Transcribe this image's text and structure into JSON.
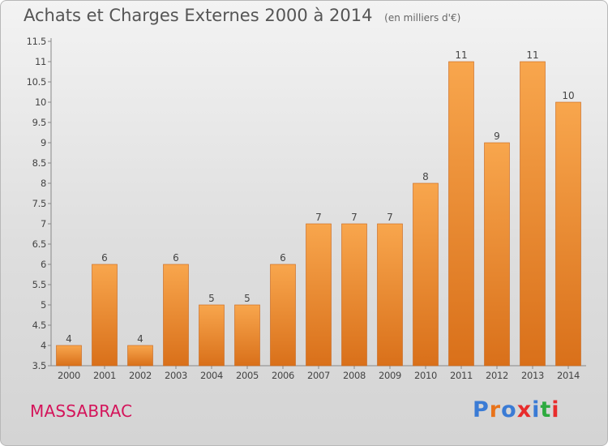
{
  "header": {
    "title": "Achats et Charges Externes 2000 à 2014",
    "unit": "(en milliers d'€)"
  },
  "footer": {
    "commune": "MASSABRAC",
    "logo_text": "Proxiti",
    "logo_colors": [
      "#3a7bd5",
      "#e8731a",
      "#3a7bd5",
      "#e82c2c",
      "#3a7bd5",
      "#2eaa3f",
      "#e82c2c"
    ]
  },
  "colors": {
    "bar": "#f0912f",
    "bar_light": "#f8aa55",
    "bar_dark": "#d9701a"
  },
  "chart_data": {
    "type": "bar",
    "categories": [
      "2000",
      "2001",
      "2002",
      "2003",
      "2004",
      "2005",
      "2006",
      "2007",
      "2008",
      "2009",
      "2010",
      "2011",
      "2012",
      "2013",
      "2014"
    ],
    "values": [
      4,
      6,
      4,
      6,
      5,
      5,
      6,
      7,
      7,
      7,
      8,
      11,
      9,
      11,
      10
    ],
    "labels": [
      "4",
      "6",
      "4",
      "6",
      "5",
      "5",
      "6",
      "7",
      "7",
      "7",
      "8",
      "11",
      "9",
      "11",
      "10"
    ],
    "y_ticks": [
      "3.5",
      "4",
      "4.5",
      "5",
      "5.5",
      "6",
      "6.5",
      "7",
      "7.5",
      "8",
      "8.5",
      "9",
      "9.5",
      "10",
      "10.5",
      "11",
      "11.5"
    ],
    "ylim": [
      3.5,
      11.5
    ],
    "grid": false
  }
}
